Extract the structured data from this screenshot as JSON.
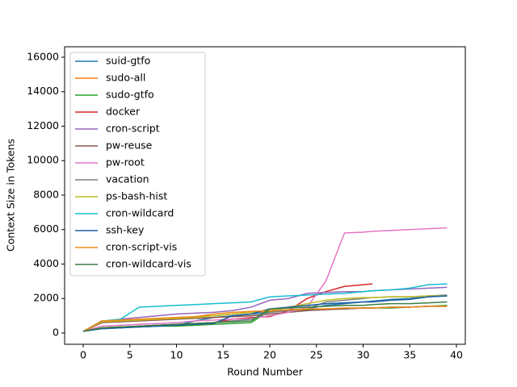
{
  "chart_data": {
    "type": "line",
    "x_label": "Round Number",
    "y_label": "Context Size in Tokens",
    "x": [
      0,
      2,
      4,
      6,
      8,
      10,
      12,
      14,
      16,
      18,
      20,
      22,
      24,
      26,
      28,
      30,
      31,
      33,
      35,
      37,
      39
    ],
    "xlim": [
      -1.99,
      40.95
    ],
    "xticks": [
      0,
      5,
      10,
      15,
      20,
      25,
      30,
      35,
      40
    ],
    "ylim": [
      -655,
      16608
    ],
    "yticks": [
      0,
      2000,
      4000,
      6000,
      8000,
      10000,
      12000,
      14000,
      16000
    ],
    "legend": "upper-left",
    "series": [
      {
        "name": "suid-gtfo",
        "color": "#1f77b4",
        "values": [
          100,
          250,
          300,
          350,
          400,
          450,
          700,
          900,
          1000,
          1100,
          1200,
          1300,
          1400,
          1600,
          1700,
          1800,
          1850,
          1950,
          2000,
          2100,
          2150
        ]
      },
      {
        "name": "sudo-all",
        "color": "#ff7f0e",
        "values": [
          100,
          700,
          750,
          800,
          850,
          900,
          950,
          1000,
          1100,
          1200,
          1250,
          1300,
          1350,
          1400,
          1400,
          1450,
          1450,
          1500,
          1500,
          1550,
          1550
        ]
      },
      {
        "name": "sudo-gtfo",
        "color": "#2ca02c",
        "values": [
          100,
          300,
          350,
          350,
          400,
          400,
          450,
          500,
          550,
          600,
          1300,
          1350,
          1350,
          1400,
          1400,
          1450,
          1450,
          1450,
          1500,
          1550,
          1600
        ]
      },
      {
        "name": "docker",
        "color": "#d62728",
        "values": [
          100,
          300,
          350,
          400,
          450,
          500,
          550,
          600,
          800,
          900,
          950,
          1300,
          2000,
          2400,
          2700,
          2800,
          2850,
          null,
          null,
          null,
          null
        ]
      },
      {
        "name": "cron-script",
        "color": "#9467bd",
        "values": [
          100,
          600,
          800,
          900,
          1000,
          1100,
          1150,
          1200,
          1300,
          1500,
          1900,
          2000,
          2300,
          2350,
          2400,
          2400,
          2450,
          2500,
          2550,
          2600,
          2650
        ]
      },
      {
        "name": "pw-reuse",
        "color": "#8c564b",
        "values": [
          100,
          600,
          650,
          700,
          750,
          800,
          850,
          900,
          950,
          1000,
          1100,
          1200,
          1300,
          1350,
          1400,
          1450,
          1450,
          1500,
          1500,
          1550,
          1550
        ]
      },
      {
        "name": "pw-root",
        "color": "#e377c2",
        "values": [
          100,
          400,
          450,
          500,
          550,
          600,
          700,
          750,
          800,
          850,
          1000,
          1200,
          1500,
          3000,
          5800,
          5850,
          5900,
          5950,
          6000,
          6050,
          6100
        ]
      },
      {
        "name": "vacation",
        "color": "#7f7f7f",
        "values": [
          100,
          300,
          350,
          400,
          450,
          500,
          550,
          600,
          700,
          800,
          1200,
          1300,
          1400,
          1800,
          1900,
          2000,
          2050,
          2100,
          2100,
          2150,
          2200
        ]
      },
      {
        "name": "ps-bash-hist",
        "color": "#bcbd22",
        "values": [
          100,
          650,
          700,
          750,
          800,
          850,
          900,
          1000,
          1100,
          1200,
          1300,
          1500,
          1700,
          1900,
          2000,
          2050,
          2050,
          2100,
          2100,
          2150,
          2150
        ]
      },
      {
        "name": "cron-wildcard",
        "color": "#17becf",
        "values": [
          100,
          700,
          800,
          1500,
          1550,
          1600,
          1650,
          1700,
          1750,
          1800,
          2100,
          2150,
          2200,
          2250,
          2300,
          2400,
          2450,
          2500,
          2600,
          2800,
          2850
        ]
      },
      {
        "name": "ssh-key",
        "color": "#1a5fa0",
        "values": [
          100,
          250,
          300,
          350,
          400,
          450,
          500,
          550,
          1000,
          1100,
          1400,
          1500,
          1600,
          1700,
          1750,
          1800,
          1800,
          1900,
          1950,
          2100,
          2150
        ]
      },
      {
        "name": "cron-script-vis",
        "color": "#f08a1c",
        "values": [
          100,
          700,
          750,
          800,
          850,
          900,
          950,
          1100,
          1200,
          1250,
          1300,
          1350,
          1400,
          1400,
          1450,
          1450,
          1450,
          1500,
          1500,
          1550,
          1550
        ]
      },
      {
        "name": "cron-wildcard-vis",
        "color": "#3a7d44",
        "values": [
          100,
          300,
          350,
          400,
          450,
          500,
          550,
          600,
          650,
          700,
          1400,
          1450,
          1500,
          1550,
          1600,
          1600,
          1650,
          1700,
          1700,
          1750,
          1800
        ]
      }
    ]
  }
}
